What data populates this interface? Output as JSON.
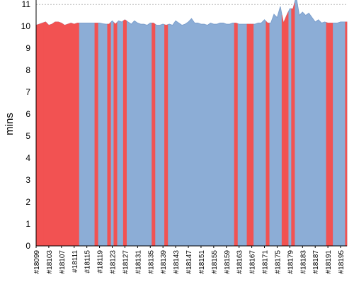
{
  "chart_data": {
    "type": "area",
    "ylabel": "mins",
    "xlabel": "",
    "ylim": [
      0,
      11.2
    ],
    "yticks": [
      0,
      1,
      2,
      3,
      4,
      5,
      6,
      7,
      8,
      9,
      10,
      11
    ],
    "reference_line": 11,
    "grid": "horizontal dashed",
    "legend": "none",
    "colors": {
      "pass": "#8cadd6",
      "fail": "#f25252",
      "pass_stroke": "#7c9fcd",
      "grid": "#999999",
      "axis": "#000000"
    },
    "x_start": 18099,
    "x_end": 18197,
    "xtick_labels": [
      "#18099",
      "#18103",
      "#18107",
      "#18111",
      "#18115",
      "#18119",
      "#18123",
      "#18127",
      "#18131",
      "#18135",
      "#18139",
      "#18143",
      "#18147",
      "#18151",
      "#18155",
      "#18159",
      "#18163",
      "#18167",
      "#18171",
      "#18175",
      "#18179",
      "#18183",
      "#18187",
      "#18191",
      "#18195"
    ],
    "values": [
      10.05,
      10.1,
      10.15,
      10.2,
      10.05,
      10.1,
      10.2,
      10.2,
      10.15,
      10.05,
      10.1,
      10.15,
      10.1,
      10.15,
      10.15,
      10.15,
      10.15,
      10.15,
      10.15,
      10.15,
      10.15,
      10.12,
      10.1,
      10.1,
      10.25,
      10.1,
      10.25,
      10.2,
      10.3,
      10.2,
      10.1,
      10.25,
      10.15,
      10.1,
      10.1,
      10.05,
      10.15,
      10.15,
      10.05,
      10.05,
      10.1,
      10.05,
      10.1,
      10.05,
      10.25,
      10.15,
      10.05,
      10.1,
      10.2,
      10.35,
      10.15,
      10.15,
      10.1,
      10.1,
      10.05,
      10.15,
      10.1,
      10.1,
      10.15,
      10.15,
      10.1,
      10.1,
      10.15,
      10.15,
      10.1,
      10.1,
      10.1,
      10.1,
      10.1,
      10.1,
      10.15,
      10.15,
      10.3,
      10.15,
      10.15,
      10.55,
      10.4,
      10.9,
      10.15,
      10.5,
      10.8,
      10.8,
      11.35,
      10.5,
      10.65,
      10.5,
      10.6,
      10.4,
      10.2,
      10.3,
      10.15,
      10.2,
      10.15,
      10.15,
      10.15,
      10.15,
      10.2,
      10.2,
      10.2
    ],
    "failed_builds": [
      18099,
      18100,
      18101,
      18102,
      18103,
      18104,
      18105,
      18106,
      18107,
      18108,
      18109,
      18110,
      18111,
      18112,
      18118,
      18122,
      18124,
      18127,
      18136,
      18140,
      18162,
      18166,
      18167,
      18172,
      18177,
      18178,
      18180,
      18191,
      18192,
      18197
    ]
  }
}
